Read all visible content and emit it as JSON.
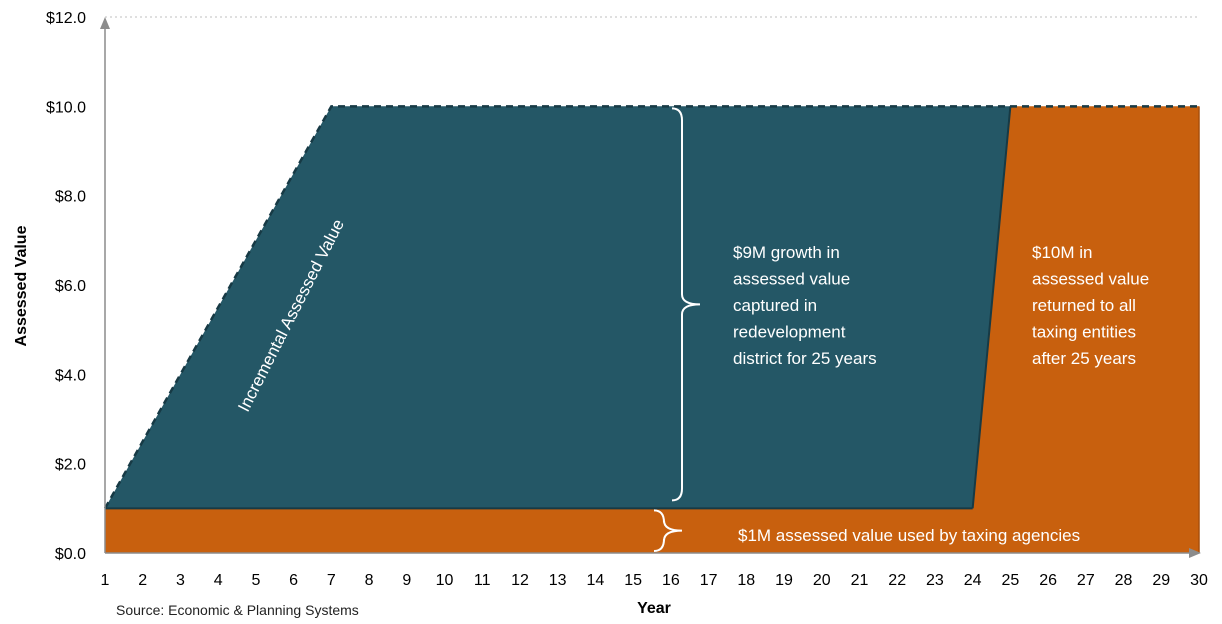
{
  "chart_data": {
    "type": "area",
    "xlabel": "Year",
    "ylabel": "Assessed Value",
    "xlim": [
      1,
      30
    ],
    "ylim": [
      0,
      12
    ],
    "x_ticks": [
      "1",
      "2",
      "3",
      "4",
      "5",
      "6",
      "7",
      "8",
      "9",
      "10",
      "11",
      "12",
      "13",
      "14",
      "15",
      "16",
      "17",
      "18",
      "19",
      "20",
      "21",
      "22",
      "23",
      "24",
      "25",
      "26",
      "27",
      "28",
      "29",
      "30"
    ],
    "y_ticks": [
      "$0.0",
      "$2.0",
      "$4.0",
      "$6.0",
      "$8.0",
      "$10.0",
      "$12.0"
    ],
    "y_tick_values": [
      0,
      2,
      4,
      6,
      8,
      10,
      12
    ],
    "grid": "horizontal dotted at $12.0",
    "series": [
      {
        "fill": "#c8600e",
        "points": [
          [
            1,
            0
          ],
          [
            1,
            1
          ],
          [
            24,
            1
          ],
          [
            25,
            10
          ],
          [
            30,
            10
          ],
          [
            30,
            0
          ]
        ]
      },
      {
        "fill": "#245766",
        "points": [
          [
            1,
            1
          ],
          [
            7,
            10
          ],
          [
            25,
            10
          ],
          [
            24,
            1
          ]
        ]
      }
    ],
    "annotations": {
      "diagonal_label": "Incremental Assessed Value",
      "capture_note": [
        "$9M growth in",
        "assessed value",
        "captured in",
        "redevelopment",
        "district for 25 years"
      ],
      "return_note": [
        "$10M in",
        "assessed value",
        "returned to all",
        "taxing entities",
        "after 25 years"
      ],
      "base_note": "$1M assessed value used by taxing agencies"
    },
    "source": "Source: Economic & Planning Systems",
    "colors": {
      "base": "#c8600e",
      "increment": "#245766",
      "axis": "#8c8c8c"
    }
  }
}
